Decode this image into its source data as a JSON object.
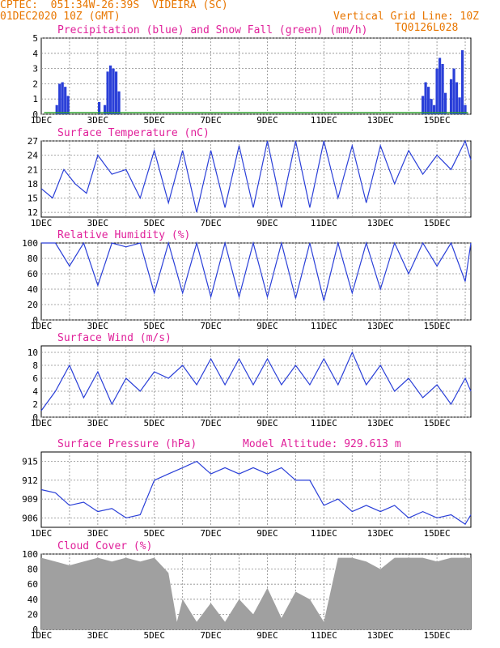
{
  "header": {
    "line1": "CPTEC:  051:34W-26:39S  VIDEIRA (SC)",
    "line2": "01DEC2020 10Z (GMT)",
    "grid_note": "Vertical Grid Line: 10Z",
    "code": "TQ0126L028"
  },
  "colors": {
    "header": "#e87600",
    "title": "#e0209a",
    "line": "#2a3fd8",
    "snow": "#2aa02a",
    "cloud": "#a0a0a0",
    "grid": "#8a8a8a"
  },
  "chart_data": [
    {
      "type": "bar",
      "title": "Precipitation (blue) and Snow Fall (green) (mm/h)",
      "ylim": [
        0,
        5
      ],
      "yticks": [
        "0",
        "1",
        "2",
        "3",
        "4",
        "5"
      ],
      "xticks": [
        "1DEC",
        "3DEC",
        "5DEC",
        "7DEC",
        "9DEC",
        "11DEC",
        "13DEC",
        "15DEC"
      ],
      "x_range_days": [
        1,
        16.2
      ],
      "series": [
        {
          "name": "precipitation",
          "x": [
            1.55,
            1.65,
            1.75,
            1.85,
            1.95,
            3.05,
            3.25,
            3.35,
            3.45,
            3.55,
            3.65,
            3.75,
            14.5,
            14.6,
            14.7,
            14.8,
            14.9,
            15.0,
            15.1,
            15.2,
            15.3,
            15.5,
            15.6,
            15.7,
            15.8,
            15.9,
            16.0
          ],
          "values": [
            0.6,
            2.0,
            2.1,
            1.8,
            1.2,
            0.8,
            0.6,
            2.8,
            3.2,
            3.0,
            2.8,
            1.5,
            1.2,
            2.1,
            1.8,
            1.0,
            0.6,
            3.0,
            3.7,
            3.3,
            1.4,
            2.3,
            3.0,
            2.1,
            1.1,
            4.2,
            0.6
          ]
        },
        {
          "name": "snow fall",
          "x": [
            1.1,
            16.1
          ],
          "values": [
            0.1,
            0.1
          ]
        }
      ]
    },
    {
      "type": "line",
      "title": "Surface Temperature (nC)",
      "ylim": [
        11,
        27
      ],
      "yticks": [
        "12",
        "15",
        "18",
        "21",
        "24",
        "27"
      ],
      "xticks": [
        "1DEC",
        "3DEC",
        "5DEC",
        "7DEC",
        "9DEC",
        "11DEC",
        "13DEC",
        "15DEC"
      ],
      "series": [
        {
          "x": [
            1.0,
            1.4,
            1.8,
            2.2,
            2.6,
            3.0,
            3.5,
            4.0,
            4.5,
            5.0,
            5.5,
            6.0,
            6.5,
            7.0,
            7.5,
            8.0,
            8.5,
            9.0,
            9.5,
            10.0,
            10.5,
            11.0,
            11.5,
            12.0,
            12.5,
            13.0,
            13.5,
            14.0,
            14.5,
            15.0,
            15.5,
            16.0,
            16.2
          ],
          "values": [
            17,
            15,
            21,
            18,
            16,
            24,
            20,
            21,
            15,
            25,
            14,
            25,
            12,
            25,
            13,
            26,
            13,
            27,
            13,
            27,
            13,
            27,
            15,
            26,
            14,
            26,
            18,
            25,
            20,
            24,
            21,
            27,
            23
          ]
        }
      ]
    },
    {
      "type": "line",
      "title": "Relative Humidity (%)",
      "ylim": [
        0,
        100
      ],
      "yticks": [
        "0",
        "20",
        "40",
        "60",
        "80",
        "100"
      ],
      "xticks": [
        "1DEC",
        "3DEC",
        "5DEC",
        "7DEC",
        "9DEC",
        "11DEC",
        "13DEC",
        "15DEC"
      ],
      "series": [
        {
          "x": [
            1.0,
            1.5,
            2.0,
            2.5,
            3.0,
            3.5,
            4.0,
            4.5,
            5.0,
            5.5,
            6.0,
            6.5,
            7.0,
            7.5,
            8.0,
            8.5,
            9.0,
            9.5,
            10.0,
            10.5,
            11.0,
            11.5,
            12.0,
            12.5,
            13.0,
            13.5,
            14.0,
            14.5,
            15.0,
            15.5,
            16.0,
            16.2
          ],
          "values": [
            100,
            100,
            70,
            100,
            45,
            100,
            95,
            100,
            35,
            100,
            35,
            100,
            30,
            100,
            30,
            100,
            30,
            100,
            28,
            100,
            25,
            100,
            35,
            100,
            40,
            100,
            60,
            100,
            70,
            100,
            50,
            100
          ]
        }
      ]
    },
    {
      "type": "line",
      "title": "Surface Wind (m/s)",
      "ylim": [
        0,
        11
      ],
      "yticks": [
        "0",
        "2",
        "4",
        "6",
        "8",
        "10"
      ],
      "xticks": [
        "1DEC",
        "3DEC",
        "5DEC",
        "7DEC",
        "9DEC",
        "11DEC",
        "13DEC",
        "15DEC"
      ],
      "series": [
        {
          "x": [
            1.0,
            1.5,
            2.0,
            2.5,
            3.0,
            3.5,
            4.0,
            4.5,
            5.0,
            5.5,
            6.0,
            6.5,
            7.0,
            7.5,
            8.0,
            8.5,
            9.0,
            9.5,
            10.0,
            10.5,
            11.0,
            11.5,
            12.0,
            12.5,
            13.0,
            13.5,
            14.0,
            14.5,
            15.0,
            15.5,
            16.0,
            16.2
          ],
          "values": [
            1,
            4,
            8,
            3,
            7,
            2,
            6,
            4,
            7,
            6,
            8,
            5,
            9,
            5,
            9,
            5,
            9,
            5,
            8,
            5,
            9,
            5,
            10,
            5,
            8,
            4,
            6,
            3,
            5,
            2,
            6,
            4
          ]
        }
      ]
    },
    {
      "type": "line",
      "title": "Surface Pressure (hPa)",
      "annotation": "Model Altitude: 929.613 m",
      "ylim": [
        904.5,
        916.5
      ],
      "yticks": [
        "906",
        "909",
        "912",
        "915"
      ],
      "xticks": [
        "1DEC",
        "3DEC",
        "5DEC",
        "7DEC",
        "9DEC",
        "11DEC",
        "13DEC",
        "15DEC"
      ],
      "series": [
        {
          "x": [
            1.0,
            1.5,
            2.0,
            2.5,
            3.0,
            3.5,
            4.0,
            4.5,
            5.0,
            5.5,
            6.0,
            6.5,
            7.0,
            7.5,
            8.0,
            8.5,
            9.0,
            9.5,
            10.0,
            10.5,
            11.0,
            11.5,
            12.0,
            12.5,
            13.0,
            13.5,
            14.0,
            14.5,
            15.0,
            15.5,
            16.0,
            16.2
          ],
          "values": [
            910.5,
            910,
            908,
            908.5,
            907,
            907.5,
            906,
            906.5,
            912,
            913,
            914,
            915,
            913,
            914,
            913,
            914,
            913,
            914,
            912,
            912,
            908,
            909,
            907,
            908,
            907,
            908,
            906,
            907,
            906,
            906.5,
            905,
            906.5
          ]
        }
      ]
    },
    {
      "type": "area",
      "title": "Cloud Cover (%)",
      "ylim": [
        0,
        100
      ],
      "yticks": [
        "0",
        "20",
        "40",
        "60",
        "80",
        "100"
      ],
      "xticks": [
        "1DEC",
        "3DEC",
        "5DEC",
        "7DEC",
        "9DEC",
        "11DEC",
        "13DEC",
        "15DEC"
      ],
      "series": [
        {
          "x": [
            1.0,
            1.5,
            2.0,
            2.5,
            3.0,
            3.5,
            4.0,
            4.5,
            5.0,
            5.5,
            5.8,
            6.0,
            6.5,
            7.0,
            7.5,
            8.0,
            8.5,
            9.0,
            9.5,
            10.0,
            10.5,
            11.0,
            11.5,
            12.0,
            12.5,
            13.0,
            13.5,
            14.0,
            14.5,
            15.0,
            15.5,
            16.0,
            16.2
          ],
          "values": [
            95,
            90,
            85,
            90,
            95,
            90,
            95,
            90,
            95,
            75,
            10,
            40,
            10,
            35,
            10,
            40,
            20,
            55,
            15,
            50,
            40,
            10,
            95,
            95,
            90,
            80,
            95,
            95,
            95,
            90,
            95,
            95,
            95
          ]
        }
      ]
    }
  ]
}
